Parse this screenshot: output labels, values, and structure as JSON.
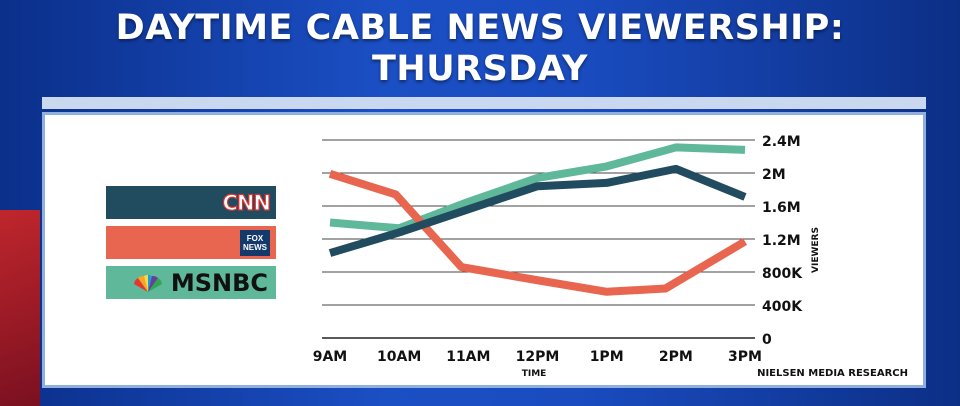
{
  "title_lines": [
    "DAYTIME CABLE NEWS VIEWERSHIP:",
    "THURSDAY"
  ],
  "source": "NIELSEN MEDIA RESEARCH",
  "legend": [
    {
      "name": "CNN",
      "color": "#214b5f"
    },
    {
      "name": "FOX NEWS",
      "color": "#e8664f"
    },
    {
      "name": "MSNBC",
      "color": "#5fb89a"
    }
  ],
  "fox_logo_text": "FOX NEWS",
  "chart_data": {
    "type": "line",
    "categories": [
      "9AM",
      "10AM",
      "11AM",
      "12PM",
      "1PM",
      "2PM",
      "3PM"
    ],
    "xlabel": "TIME",
    "ylabel": "VIEWERS",
    "ylim": [
      0,
      2400000
    ],
    "yticks": [
      0,
      400000,
      800000,
      1200000,
      1600000,
      2000000,
      2400000
    ],
    "ytick_labels": [
      "0",
      "400K",
      "800K",
      "1.2M",
      "1.6M",
      "2M",
      "2.4M"
    ],
    "grid": true,
    "series": [
      {
        "name": "MSNBC",
        "color": "#5fb89a",
        "x": [
          0,
          1,
          2,
          3,
          4,
          5,
          6
        ],
        "values": [
          1400000,
          1330000,
          1650000,
          1940000,
          2080000,
          2310000,
          2280000
        ]
      },
      {
        "name": "FOX NEWS",
        "color": "#e8664f",
        "x": [
          0,
          0.95,
          1.9,
          3,
          4,
          4.85,
          6
        ],
        "values": [
          1990000,
          1740000,
          860000,
          700000,
          560000,
          600000,
          1170000
        ]
      },
      {
        "name": "CNN",
        "color": "#214b5f",
        "x": [
          0,
          1,
          2,
          3,
          4,
          5,
          6
        ],
        "values": [
          1030000,
          1280000,
          1560000,
          1840000,
          1880000,
          2050000,
          1710000
        ]
      }
    ]
  }
}
